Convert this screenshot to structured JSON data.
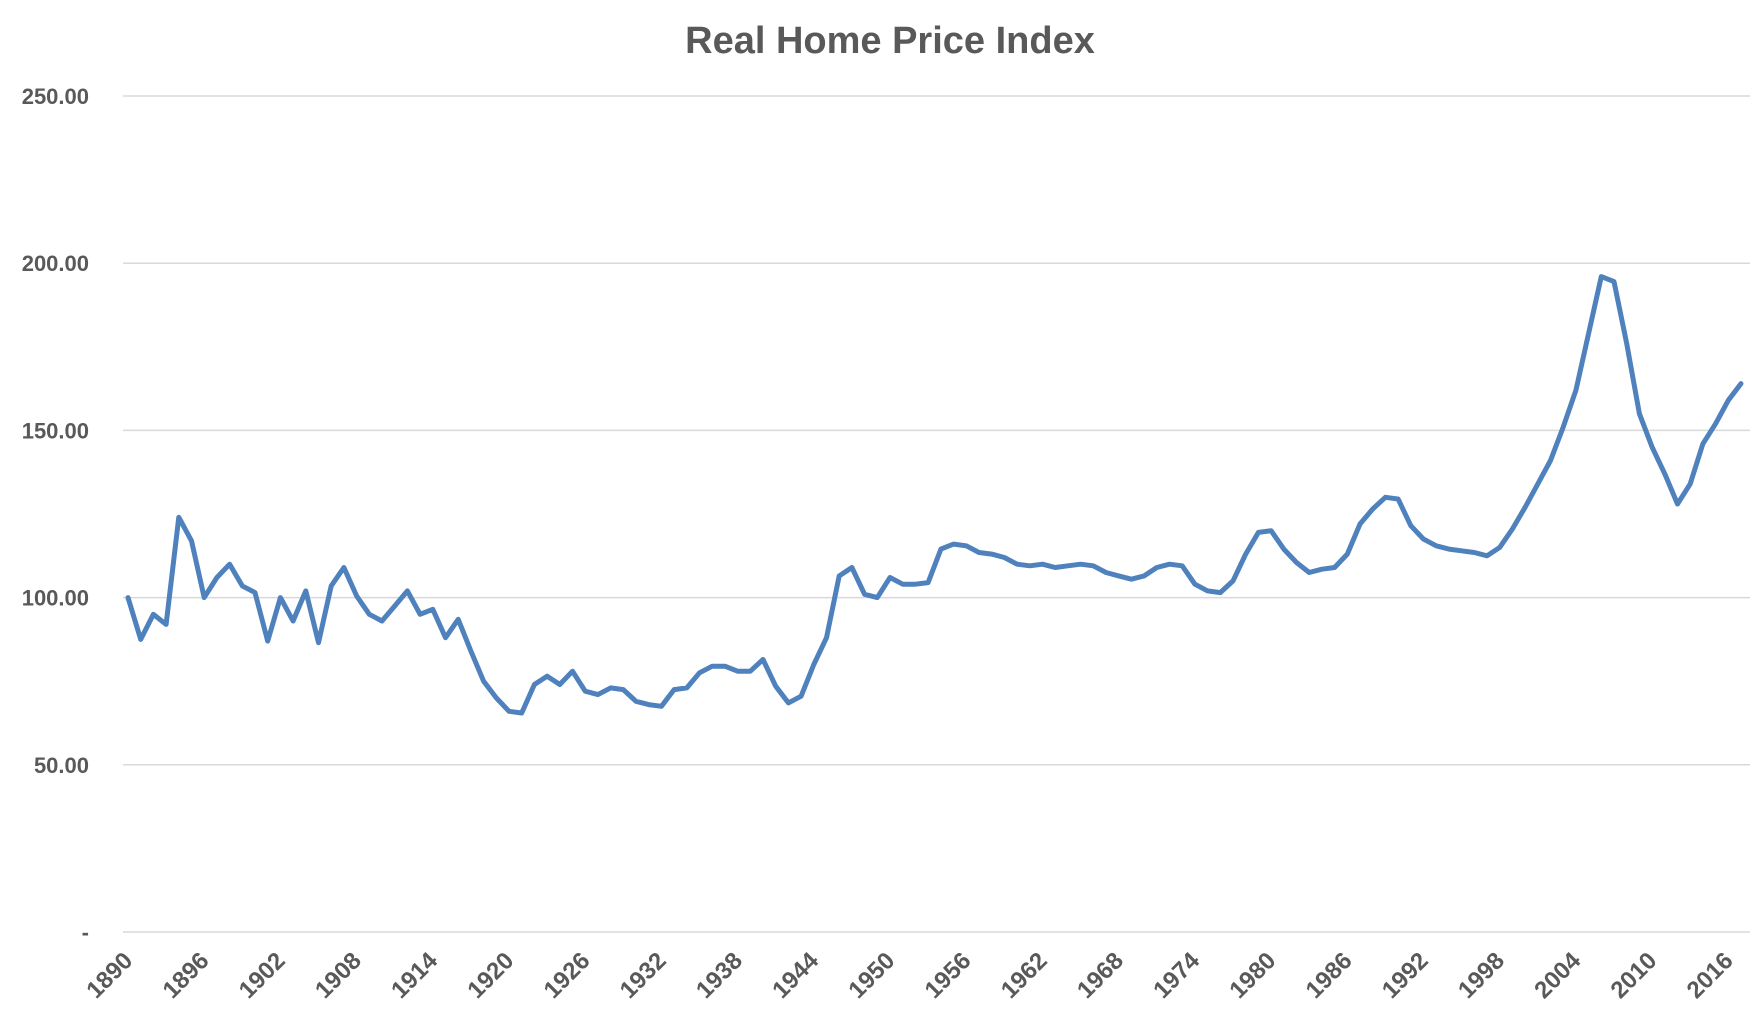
{
  "chart_data": {
    "type": "line",
    "title": "Real Home Price Index",
    "xlabel": "",
    "ylabel": "",
    "ylim": [
      0,
      250
    ],
    "y_ticks": [
      {
        "value": 0,
        "label": "-"
      },
      {
        "value": 50,
        "label": "50.00"
      },
      {
        "value": 100,
        "label": "100.00"
      },
      {
        "value": 150,
        "label": "150.00"
      },
      {
        "value": 200,
        "label": "200.00"
      },
      {
        "value": 250,
        "label": "250.00"
      }
    ],
    "x_tick_labels": [
      "1890",
      "1896",
      "1902",
      "1908",
      "1914",
      "1920",
      "1926",
      "1932",
      "1938",
      "1944",
      "1950",
      "1956",
      "1962",
      "1968",
      "1974",
      "1980",
      "1986",
      "1992",
      "1998",
      "2004",
      "2010",
      "2016"
    ],
    "grid": true,
    "legend": "none",
    "line_color": "#4f81bd",
    "x": [
      1890,
      1891,
      1892,
      1893,
      1894,
      1895,
      1896,
      1897,
      1898,
      1899,
      1900,
      1901,
      1902,
      1903,
      1904,
      1905,
      1906,
      1907,
      1908,
      1909,
      1910,
      1911,
      1912,
      1913,
      1914,
      1915,
      1916,
      1917,
      1918,
      1919,
      1920,
      1921,
      1922,
      1923,
      1924,
      1925,
      1926,
      1927,
      1928,
      1929,
      1930,
      1931,
      1932,
      1933,
      1934,
      1935,
      1936,
      1937,
      1938,
      1939,
      1940,
      1941,
      1942,
      1943,
      1944,
      1945,
      1946,
      1947,
      1948,
      1949,
      1950,
      1951,
      1952,
      1953,
      1954,
      1955,
      1956,
      1957,
      1958,
      1959,
      1960,
      1961,
      1962,
      1963,
      1964,
      1965,
      1966,
      1967,
      1968,
      1969,
      1970,
      1971,
      1972,
      1973,
      1974,
      1975,
      1976,
      1977,
      1978,
      1979,
      1980,
      1981,
      1982,
      1983,
      1984,
      1985,
      1986,
      1987,
      1988,
      1989,
      1990,
      1991,
      1992,
      1993,
      1994,
      1995,
      1996,
      1997,
      1998,
      1999,
      2000,
      2001,
      2002,
      2003,
      2004,
      2005,
      2006,
      2007,
      2008,
      2009,
      2010,
      2011,
      2012,
      2013,
      2014,
      2015,
      2016,
      2017
    ],
    "series": [
      {
        "values": [
          100,
          87.5,
          95,
          92,
          124,
          117,
          100,
          106,
          110,
          103.5,
          101.5,
          87,
          100,
          93,
          102,
          86.5,
          103.5,
          109,
          100.5,
          95,
          93,
          97.5,
          102,
          95,
          96.5,
          88,
          93.5,
          84,
          75,
          70,
          66,
          65.5,
          74,
          76.5,
          74,
          78,
          72,
          71,
          73,
          72.5,
          69,
          68,
          67.5,
          72.5,
          73,
          77.5,
          79.5,
          79.5,
          78,
          78,
          81.5,
          73.5,
          68.5,
          70.5,
          80,
          88,
          106.5,
          109,
          101,
          100,
          106,
          104,
          104,
          104.5,
          114.5,
          116,
          115.5,
          113.5,
          113,
          112,
          110,
          109.5,
          110,
          109,
          109.5,
          110,
          109.5,
          107.5,
          106.5,
          105.5,
          106.5,
          109,
          110,
          109.5,
          104,
          102,
          101.5,
          105,
          113,
          119.5,
          120,
          114.5,
          110.5,
          107.5,
          108.5,
          109,
          113,
          122,
          126.5,
          130,
          129.5,
          121.5,
          117.5,
          115.5,
          114.5,
          114,
          113.5,
          112.5,
          115,
          120.5,
          127,
          134,
          141,
          151,
          162,
          179,
          196,
          194.5,
          176,
          155,
          145,
          137,
          128,
          134,
          146,
          152,
          159,
          164
        ]
      }
    ]
  }
}
